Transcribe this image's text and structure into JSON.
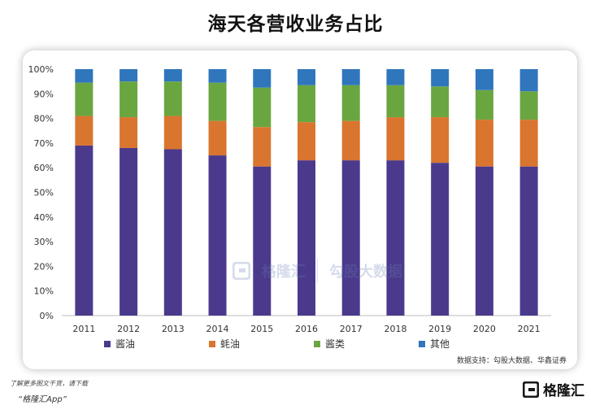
{
  "page": {
    "title": "海天各营收业务占比",
    "source": "数据支持：勾股大数据、华鑫证券",
    "footer_note": "了解更多图文干货，请下载",
    "footer_app": "“格隆汇App”",
    "brand_name": "格隆汇",
    "watermark_left": "格隆汇",
    "watermark_right": "勾股大数据"
  },
  "colors": {
    "soy_sauce": "#4b3a8c",
    "oyster_sauce": "#d9752f",
    "paste": "#6aa640",
    "other": "#2f76bd",
    "brand": "#1a1a1a"
  },
  "chart_data": {
    "type": "bar",
    "stacked": true,
    "title": "海天各营收业务占比",
    "categories": [
      "2011",
      "2012",
      "2013",
      "2014",
      "2015",
      "2016",
      "2017",
      "2018",
      "2019",
      "2020",
      "2021"
    ],
    "series": [
      {
        "name": "酱油",
        "values": [
          69,
          68,
          67.5,
          65,
          60.5,
          63,
          63,
          63,
          62,
          60.5,
          60.5
        ]
      },
      {
        "name": "蚝油",
        "values": [
          12,
          12.5,
          13.5,
          14,
          16,
          15.5,
          16,
          17.5,
          18.5,
          19,
          19
        ]
      },
      {
        "name": "酱类",
        "values": [
          13.5,
          14.5,
          14,
          15.5,
          16,
          15,
          14.5,
          13,
          12.5,
          12,
          11.5
        ]
      },
      {
        "name": "其他",
        "values": [
          5.5,
          5,
          5,
          5.5,
          7.5,
          6.5,
          6.5,
          6.5,
          7,
          8.5,
          9
        ]
      }
    ],
    "ylim": [
      0,
      100
    ],
    "yticks": [
      "0%",
      "10%",
      "20%",
      "30%",
      "40%",
      "50%",
      "60%",
      "70%",
      "80%",
      "90%",
      "100%"
    ],
    "legend_position": "bottom",
    "grid": false
  }
}
